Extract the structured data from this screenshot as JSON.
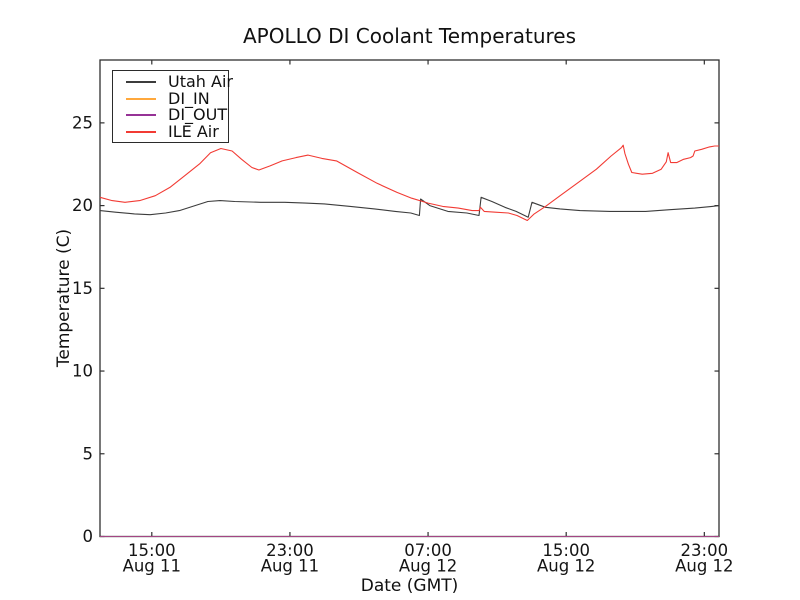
{
  "chart_data": {
    "type": "line",
    "title": "APOLLO DI Coolant Temperatures",
    "xlabel": "Date (GMT)",
    "ylabel": "Temperature (C)",
    "x_unit_note": "hours since Aug 11 12:00 GMT",
    "xlim": [
      0,
      35.85
    ],
    "ylim": [
      0,
      28.8
    ],
    "grid": false,
    "yticks": [
      0,
      5,
      10,
      15,
      20,
      25
    ],
    "xticks": [
      {
        "t": 3,
        "time": "15:00",
        "date": "Aug 11"
      },
      {
        "t": 11,
        "time": "23:00",
        "date": "Aug 11"
      },
      {
        "t": 19,
        "time": "07:00",
        "date": "Aug 12"
      },
      {
        "t": 27,
        "time": "15:00",
        "date": "Aug 12"
      },
      {
        "t": 35,
        "time": "23:00",
        "date": "Aug 12"
      }
    ],
    "legend": {
      "position": "upper left"
    },
    "series": [
      {
        "name": "Utah Air",
        "color": "#3c3c3c",
        "points": [
          [
            0,
            19.7
          ],
          [
            0.9,
            19.6
          ],
          [
            2.0,
            19.5
          ],
          [
            2.9,
            19.45
          ],
          [
            3.8,
            19.55
          ],
          [
            4.6,
            19.7
          ],
          [
            5.5,
            20.0
          ],
          [
            6.25,
            20.25
          ],
          [
            6.95,
            20.3
          ],
          [
            7.8,
            20.25
          ],
          [
            9.3,
            20.2
          ],
          [
            10.7,
            20.2
          ],
          [
            11.9,
            20.15
          ],
          [
            13.0,
            20.1
          ],
          [
            14.5,
            19.95
          ],
          [
            15.9,
            19.8
          ],
          [
            17.1,
            19.65
          ],
          [
            18.0,
            19.55
          ],
          [
            18.5,
            19.4
          ],
          [
            18.57,
            20.4
          ],
          [
            19.1,
            20.0
          ],
          [
            20.15,
            19.65
          ],
          [
            21.25,
            19.55
          ],
          [
            21.95,
            19.4
          ],
          [
            22.07,
            20.5
          ],
          [
            22.7,
            20.25
          ],
          [
            23.45,
            19.9
          ],
          [
            24.1,
            19.65
          ],
          [
            24.8,
            19.3
          ],
          [
            25.02,
            20.2
          ],
          [
            25.8,
            19.9
          ],
          [
            26.65,
            19.8
          ],
          [
            27.8,
            19.7
          ],
          [
            29.55,
            19.65
          ],
          [
            31.6,
            19.65
          ],
          [
            33.0,
            19.75
          ],
          [
            34.45,
            19.85
          ],
          [
            35.45,
            19.95
          ],
          [
            35.85,
            20.0
          ]
        ]
      },
      {
        "name": "DI_IN",
        "color": "#ffa83c",
        "points": [
          [
            0,
            0
          ],
          [
            35.85,
            0
          ]
        ]
      },
      {
        "name": "DI_OUT",
        "color": "#963296",
        "points": [
          [
            0,
            0
          ],
          [
            35.85,
            0
          ]
        ]
      },
      {
        "name": "ILE Air",
        "color": "#f23b34",
        "points": [
          [
            0,
            20.5
          ],
          [
            0.7,
            20.3
          ],
          [
            1.45,
            20.2
          ],
          [
            2.3,
            20.3
          ],
          [
            3.2,
            20.6
          ],
          [
            4.05,
            21.1
          ],
          [
            4.9,
            21.8
          ],
          [
            5.8,
            22.55
          ],
          [
            6.4,
            23.2
          ],
          [
            7.0,
            23.45
          ],
          [
            7.65,
            23.3
          ],
          [
            8.2,
            22.8
          ],
          [
            8.8,
            22.3
          ],
          [
            9.2,
            22.15
          ],
          [
            9.85,
            22.4
          ],
          [
            10.55,
            22.7
          ],
          [
            11.35,
            22.9
          ],
          [
            12.05,
            23.05
          ],
          [
            12.85,
            22.85
          ],
          [
            13.7,
            22.7
          ],
          [
            14.9,
            22.0
          ],
          [
            16.05,
            21.35
          ],
          [
            17.2,
            20.8
          ],
          [
            18.05,
            20.45
          ],
          [
            19.0,
            20.15
          ],
          [
            19.85,
            19.95
          ],
          [
            20.75,
            19.85
          ],
          [
            21.55,
            19.7
          ],
          [
            21.95,
            19.7
          ],
          [
            22.03,
            19.9
          ],
          [
            22.25,
            19.65
          ],
          [
            22.9,
            19.6
          ],
          [
            23.65,
            19.55
          ],
          [
            24.15,
            19.4
          ],
          [
            24.75,
            19.1
          ],
          [
            25.15,
            19.5
          ],
          [
            25.8,
            19.95
          ],
          [
            26.65,
            20.6
          ],
          [
            27.7,
            21.4
          ],
          [
            28.75,
            22.2
          ],
          [
            29.6,
            23.0
          ],
          [
            30.2,
            23.5
          ],
          [
            30.3,
            23.65
          ],
          [
            30.4,
            23.15
          ],
          [
            30.6,
            22.5
          ],
          [
            30.8,
            22.0
          ],
          [
            31.4,
            21.9
          ],
          [
            32.0,
            21.95
          ],
          [
            32.5,
            22.2
          ],
          [
            32.8,
            22.65
          ],
          [
            32.9,
            23.2
          ],
          [
            33.05,
            22.6
          ],
          [
            33.4,
            22.6
          ],
          [
            33.8,
            22.8
          ],
          [
            34.2,
            22.9
          ],
          [
            34.35,
            23.0
          ],
          [
            34.45,
            23.3
          ],
          [
            34.85,
            23.4
          ],
          [
            35.3,
            23.55
          ],
          [
            35.6,
            23.6
          ],
          [
            35.85,
            23.6
          ]
        ]
      }
    ]
  }
}
